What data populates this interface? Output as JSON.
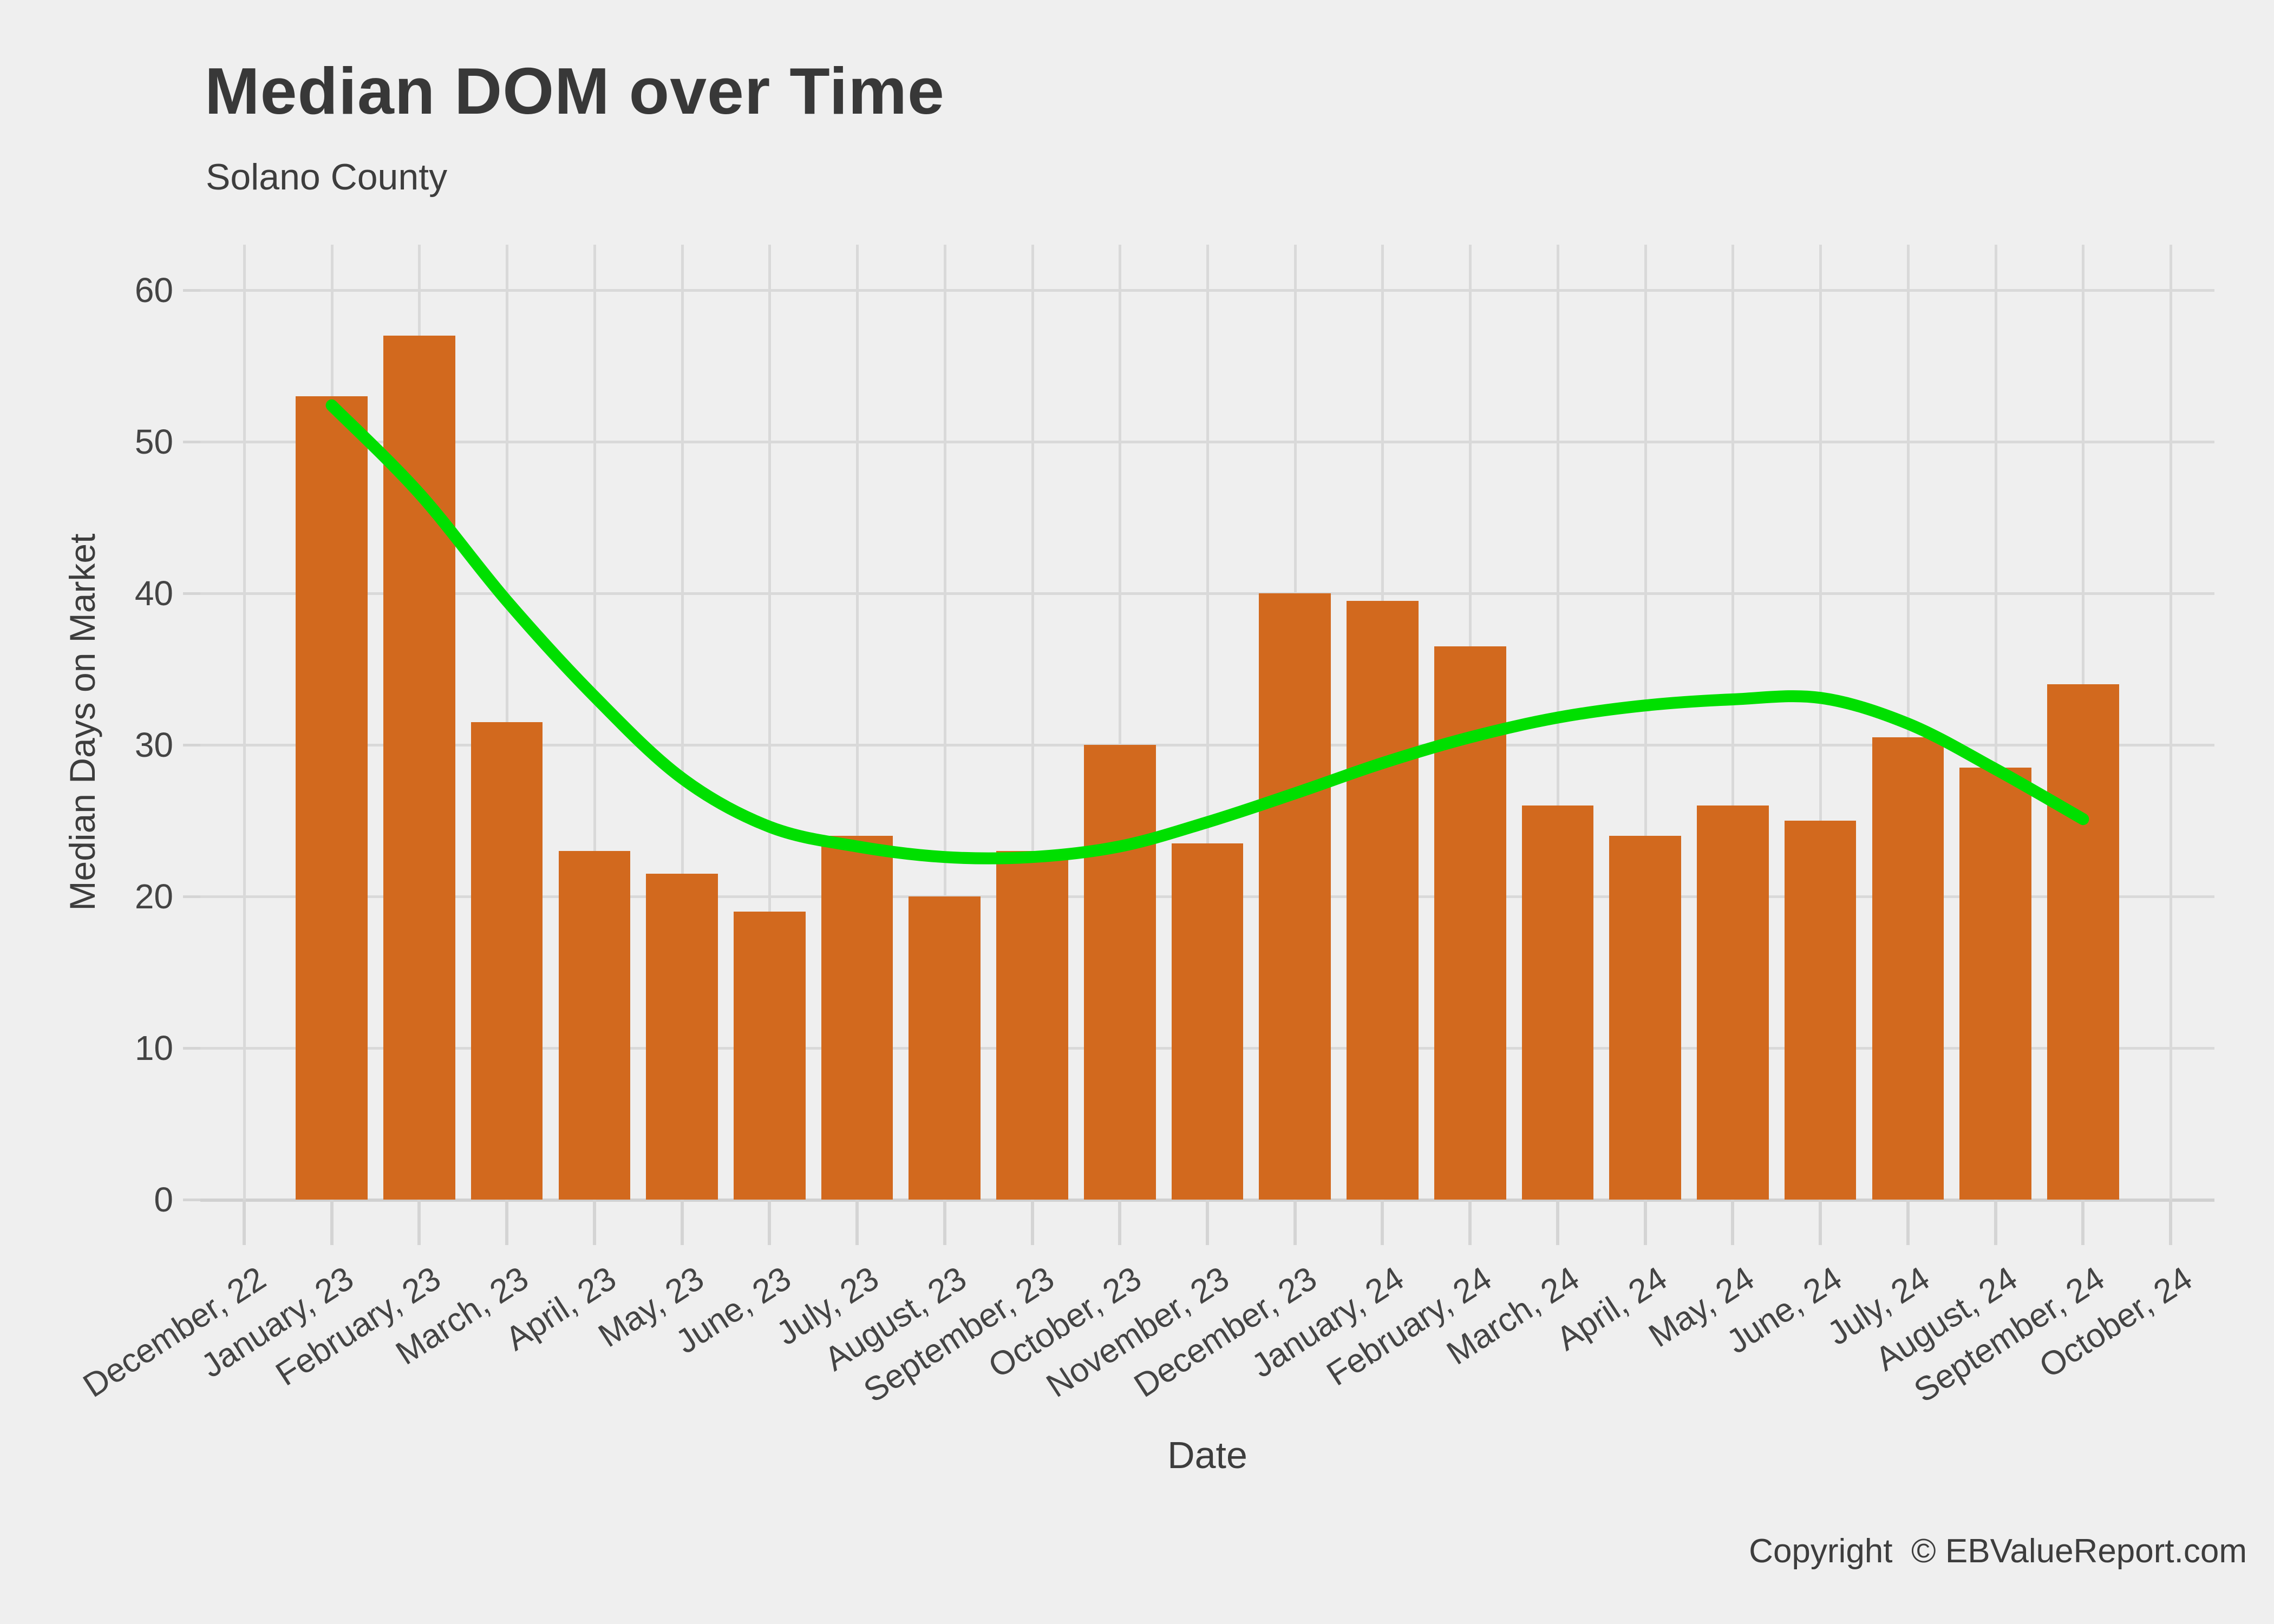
{
  "title": "Median DOM over Time",
  "subtitle": "Solano County",
  "footer": {
    "copyright": "Copyright  © EBValueReport.com"
  },
  "colors": {
    "background": "#efefef",
    "bar": "#D2691E",
    "smooth_line": "#00DF00",
    "gridline": "#d9d9d9",
    "axis_line": "#d0d0d0",
    "text": "#3d3d3d",
    "tick_text": "#444444"
  },
  "chart_data": {
    "type": "bar",
    "title": "Median DOM over Time",
    "subtitle": "Solano County",
    "xlabel": "Date",
    "ylabel": "Median Days on Market",
    "ylim": [
      0,
      60
    ],
    "yticks": [
      0,
      10,
      20,
      30,
      40,
      50,
      60
    ],
    "grid": true,
    "legend": "none",
    "categories": [
      "December, 22",
      "January, 23",
      "February, 23",
      "March, 23",
      "April, 23",
      "May, 23",
      "June, 23",
      "July, 23",
      "August, 23",
      "September, 23",
      "October, 23",
      "November, 23",
      "December, 23",
      "January, 24",
      "February, 24",
      "March, 24",
      "April, 24",
      "May, 24",
      "June, 24",
      "July, 24",
      "August, 24",
      "September, 24",
      "October, 24"
    ],
    "values": [
      null,
      53,
      57,
      31.5,
      23,
      21.5,
      19,
      24,
      20,
      23,
      30,
      23.5,
      40,
      39.5,
      36.5,
      26,
      24,
      26,
      25,
      30.5,
      28.5,
      34,
      null
    ],
    "smooth_line": {
      "description": "loess trend line, category index vs median days on market",
      "color": "#00DF00",
      "points": [
        [
          1,
          52.4
        ],
        [
          2,
          46.6
        ],
        [
          3,
          39.5
        ],
        [
          4,
          33.2
        ],
        [
          5,
          27.8
        ],
        [
          6,
          24.6
        ],
        [
          7,
          23.3
        ],
        [
          8,
          22.6
        ],
        [
          9,
          22.6
        ],
        [
          10,
          23.3
        ],
        [
          11,
          24.9
        ],
        [
          12,
          26.8
        ],
        [
          13,
          28.8
        ],
        [
          14,
          30.5
        ],
        [
          15,
          31.8
        ],
        [
          16,
          32.6
        ],
        [
          17,
          33.0
        ],
        [
          18,
          33.1
        ],
        [
          19,
          31.4
        ],
        [
          20,
          28.4
        ],
        [
          21,
          25.1
        ]
      ]
    }
  }
}
